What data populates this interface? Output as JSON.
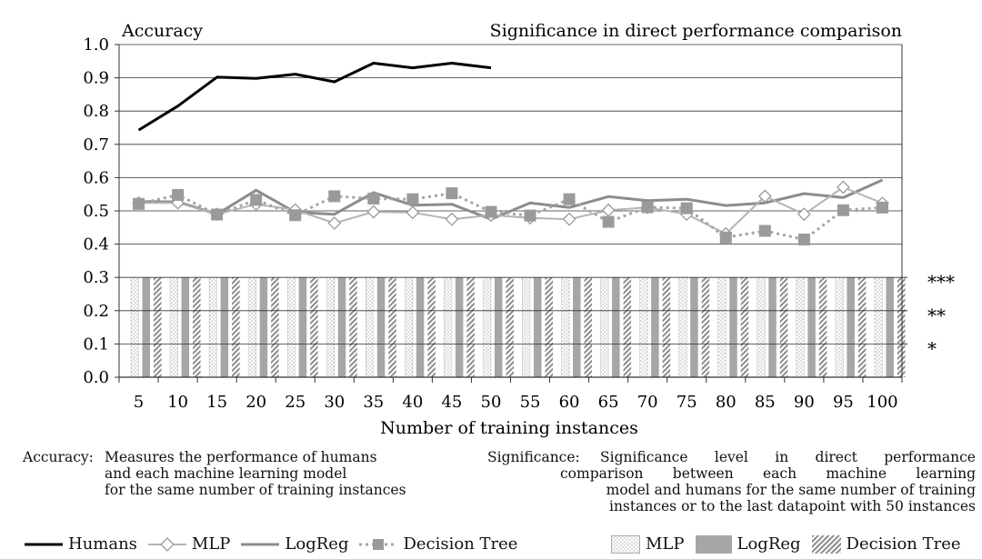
{
  "chart_data": {
    "type": "line+bar",
    "left_title": "Accuracy",
    "right_title": "Significance in direct performance comparison",
    "xlabel": "Number of training instances",
    "x": [
      5,
      10,
      15,
      20,
      25,
      30,
      35,
      40,
      45,
      50,
      55,
      60,
      65,
      70,
      75,
      80,
      85,
      90,
      95,
      100
    ],
    "x_tick_labels": [
      "5",
      "10",
      "15",
      "20",
      "25",
      "30",
      "35",
      "40",
      "45",
      "50",
      "55",
      "60",
      "65",
      "70",
      "75",
      "80",
      "85",
      "90",
      "95",
      "100"
    ],
    "ylim": [
      0,
      1
    ],
    "y_ticks": [
      0.0,
      0.1,
      0.2,
      0.3,
      0.4,
      0.5,
      0.6,
      0.7,
      0.8,
      0.9,
      1.0
    ],
    "y_tick_labels": [
      "0.0",
      "0.1",
      "0.2",
      "0.3",
      "0.4",
      "0.5",
      "0.6",
      "0.7",
      "0.8",
      "0.9",
      "1.0"
    ],
    "series": [
      {
        "name": "Humans",
        "style": "black-solid",
        "values": [
          0.743,
          0.815,
          0.902,
          0.898,
          0.911,
          0.888,
          0.944,
          0.93,
          0.944,
          0.93,
          null,
          null,
          null,
          null,
          null,
          null,
          null,
          null,
          null,
          null
        ]
      },
      {
        "name": "MLP",
        "style": "diamond",
        "values": [
          0.524,
          0.524,
          0.49,
          0.52,
          0.503,
          0.463,
          0.497,
          0.495,
          0.475,
          0.487,
          0.479,
          0.475,
          0.502,
          0.51,
          0.49,
          0.431,
          0.544,
          0.49,
          0.571,
          0.523
        ]
      },
      {
        "name": "LogReg",
        "style": "gray-solid",
        "values": [
          0.528,
          0.527,
          0.49,
          0.562,
          0.496,
          0.49,
          0.555,
          0.517,
          0.52,
          0.475,
          0.524,
          0.51,
          0.543,
          0.531,
          0.535,
          0.516,
          0.524,
          0.552,
          0.54,
          0.593
        ]
      },
      {
        "name": "Decision Tree",
        "style": "square-dotted",
        "values": [
          0.521,
          0.548,
          0.489,
          0.533,
          0.487,
          0.544,
          0.537,
          0.535,
          0.553,
          0.497,
          0.486,
          0.535,
          0.467,
          0.511,
          0.508,
          0.42,
          0.44,
          0.414,
          0.502,
          0.51
        ]
      }
    ],
    "significance": {
      "level_labels": [
        "***",
        "**",
        "*"
      ],
      "level_values": [
        0.3,
        0.2,
        0.1
      ],
      "bars": [
        {
          "name": "MLP",
          "pattern": "dotted",
          "values": [
            0.3,
            0.3,
            0.3,
            0.3,
            0.3,
            0.3,
            0.3,
            0.3,
            0.3,
            0.3,
            0.3,
            0.3,
            0.3,
            0.3,
            0.3,
            0.3,
            0.3,
            0.3,
            0.3,
            0.3
          ]
        },
        {
          "name": "LogReg",
          "pattern": "solid",
          "values": [
            0.3,
            0.3,
            0.3,
            0.3,
            0.3,
            0.3,
            0.3,
            0.3,
            0.3,
            0.3,
            0.3,
            0.3,
            0.3,
            0.3,
            0.3,
            0.3,
            0.3,
            0.3,
            0.3,
            0.3
          ]
        },
        {
          "name": "Decision Tree",
          "pattern": "hatched",
          "values": [
            0.3,
            0.3,
            0.3,
            0.3,
            0.3,
            0.3,
            0.3,
            0.3,
            0.3,
            0.3,
            0.3,
            0.3,
            0.3,
            0.3,
            0.3,
            0.3,
            0.3,
            0.3,
            0.3,
            0.3
          ]
        }
      ]
    }
  },
  "descriptions": {
    "accuracy_term": "Accuracy:",
    "accuracy_lines": [
      "Measures the performance of humans",
      "and each machine learning model",
      "for the same number of training instances"
    ],
    "significance_term": "Significance:",
    "significance_line1": [
      "Significance",
      "level",
      "in",
      "direct",
      "performance"
    ],
    "significance_line2": [
      "comparison",
      "between",
      "each",
      "machine",
      "learning"
    ],
    "significance_line3": "model and humans for the same number of training",
    "significance_line4": "instances or to the last datapoint with 50 instances"
  },
  "legend": {
    "lines": [
      {
        "label": "Humans",
        "style": "black-solid"
      },
      {
        "label": "MLP",
        "style": "diamond"
      },
      {
        "label": "LogReg",
        "style": "gray-solid"
      },
      {
        "label": "Decision Tree",
        "style": "square-dotted"
      }
    ],
    "bars": [
      {
        "label": "MLP",
        "pattern": "dotted"
      },
      {
        "label": "LogReg",
        "pattern": "solid"
      },
      {
        "label": "Decision Tree",
        "pattern": "hatched"
      }
    ]
  },
  "colors": {
    "humans": "#000000",
    "mlp": "#b4b4b4",
    "logreg": "#8c8c8c",
    "tree": "#a5a5a5",
    "bar_solid": "#a6a6a6",
    "axis": "#333333"
  }
}
